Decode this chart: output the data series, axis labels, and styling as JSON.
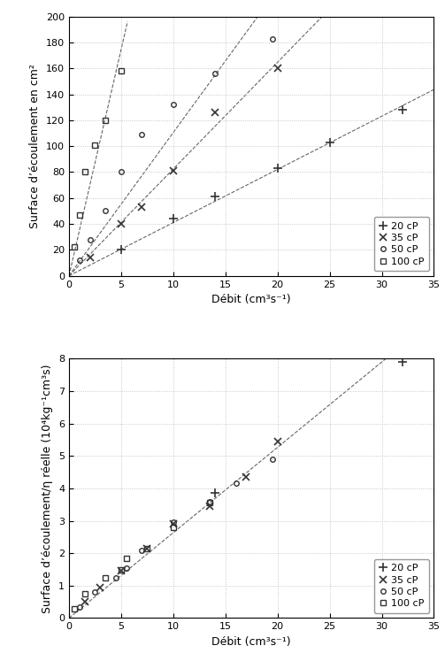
{
  "plot1": {
    "ylabel": "Surface d’écoulement en cm²",
    "xlabel": "Débit (cm³s⁻¹)",
    "xlim": [
      0,
      35
    ],
    "ylim": [
      0,
      200
    ],
    "xticks": [
      0,
      5,
      10,
      15,
      20,
      25,
      30,
      35
    ],
    "yticks": [
      0,
      20,
      40,
      60,
      80,
      100,
      120,
      140,
      160,
      180,
      200
    ],
    "top_data": {
      "20cP": {
        "x": [
          5.0,
          10.0,
          14.0,
          20.0,
          25.0,
          32.0
        ],
        "y": [
          20.0,
          44.0,
          61.0,
          83.0,
          103.0,
          128.0
        ]
      },
      "35cP": {
        "x": [
          2.0,
          5.0,
          7.0,
          10.0,
          14.0,
          20.0
        ],
        "y": [
          14.0,
          40.0,
          53.0,
          81.0,
          126.0,
          160.0
        ]
      },
      "50cP": {
        "x": [
          1.0,
          2.0,
          3.5,
          5.0,
          7.0,
          10.0,
          14.0,
          19.5
        ],
        "y": [
          12.0,
          28.0,
          50.0,
          80.0,
          109.0,
          132.0,
          156.0,
          183.0
        ]
      },
      "100cP": {
        "x": [
          0.5,
          1.0,
          1.5,
          2.5,
          3.5,
          5.0
        ],
        "y": [
          22.0,
          47.0,
          80.0,
          101.0,
          120.0,
          158.0
        ]
      }
    },
    "fit_slopes": {
      "20cP": 4.0,
      "35cP": 8.0,
      "50cP": 9.5,
      "100cP": 30.0
    }
  },
  "plot2": {
    "ylabel": "Surface d’écoulement/η réelle (10⁴kg⁻¹cm³s)",
    "xlabel": "Débit (cm³s⁻¹)",
    "xlim": [
      0,
      35
    ],
    "ylim": [
      0,
      8
    ],
    "xticks": [
      0,
      5,
      10,
      15,
      20,
      25,
      30,
      35
    ],
    "yticks": [
      0,
      1,
      2,
      3,
      4,
      5,
      6,
      7,
      8
    ],
    "bot_data": {
      "20cP": {
        "x": [
          14.0,
          32.0
        ],
        "y": [
          3.85,
          7.9
        ]
      },
      "35cP": {
        "x": [
          1.5,
          3.0,
          5.0,
          7.5,
          10.0,
          13.5,
          17.0,
          20.0
        ],
        "y": [
          0.5,
          0.95,
          1.45,
          2.15,
          2.9,
          3.45,
          4.35,
          5.45
        ]
      },
      "50cP": {
        "x": [
          1.0,
          2.5,
          4.5,
          5.5,
          7.0,
          10.0,
          13.5,
          16.0,
          19.5
        ],
        "y": [
          0.35,
          0.8,
          1.25,
          1.55,
          2.1,
          2.95,
          3.6,
          4.15,
          4.9
        ]
      },
      "100cP": {
        "x": [
          0.5,
          1.5,
          3.5,
          5.0,
          5.5,
          7.5,
          10.0,
          13.5
        ],
        "y": [
          0.28,
          0.75,
          1.25,
          1.5,
          1.85,
          2.15,
          2.8,
          3.55
        ]
      }
    },
    "fit_slope": 0.247
  },
  "line_color": "#666666",
  "marker_color": "#333333",
  "grid_color": "#bbbbbb",
  "grid_style": ":",
  "legend_fontsize": 8,
  "tick_fontsize": 8,
  "label_fontsize": 9
}
